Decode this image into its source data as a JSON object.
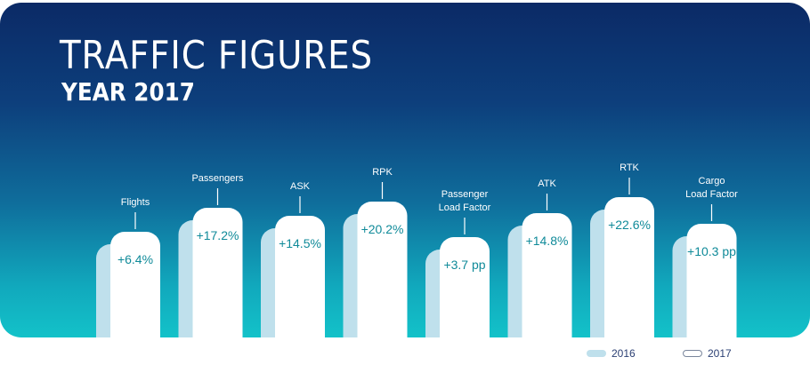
{
  "header": {
    "title": "TRAFFIC FIGURES",
    "subtitle": "YEAR 2017"
  },
  "colors": {
    "bar_2016": "#bfe0ec",
    "bar_2017": "#ffffff",
    "value_text": "#0f8a99",
    "label_text": "#ffffff",
    "legend_text": "#2b3f73"
  },
  "chart_data": {
    "type": "bar",
    "title": "TRAFFIC FIGURES",
    "subtitle": "YEAR 2017",
    "categories": [
      {
        "label": [
          "Flights"
        ],
        "change": "+6.4%",
        "value": 6.4,
        "unit": "%"
      },
      {
        "label": [
          "Passengers"
        ],
        "change": "+17.2%",
        "value": 17.2,
        "unit": "%"
      },
      {
        "label": [
          "ASK"
        ],
        "change": "+14.5%",
        "value": 14.5,
        "unit": "%"
      },
      {
        "label": [
          "RPK"
        ],
        "change": "+20.2%",
        "value": 20.2,
        "unit": "%"
      },
      {
        "label": [
          "Passenger",
          "Load Factor"
        ],
        "change": "+3.7 pp",
        "value": 3.7,
        "unit": "pp"
      },
      {
        "label": [
          "ATK"
        ],
        "change": "+14.8%",
        "value": 14.8,
        "unit": "%"
      },
      {
        "label": [
          "RTK"
        ],
        "change": "+22.6%",
        "value": 22.6,
        "unit": "%"
      },
      {
        "label": [
          "Cargo",
          "Load Factor"
        ],
        "change": "+10.3 pp",
        "value": 10.3,
        "unit": "pp"
      }
    ],
    "series": [
      {
        "name": "2016",
        "color": "#bfe0ec"
      },
      {
        "name": "2017",
        "color": "#ffffff"
      }
    ],
    "legend": {
      "position": "bottom-right",
      "items": [
        "2016",
        "2017"
      ]
    }
  }
}
